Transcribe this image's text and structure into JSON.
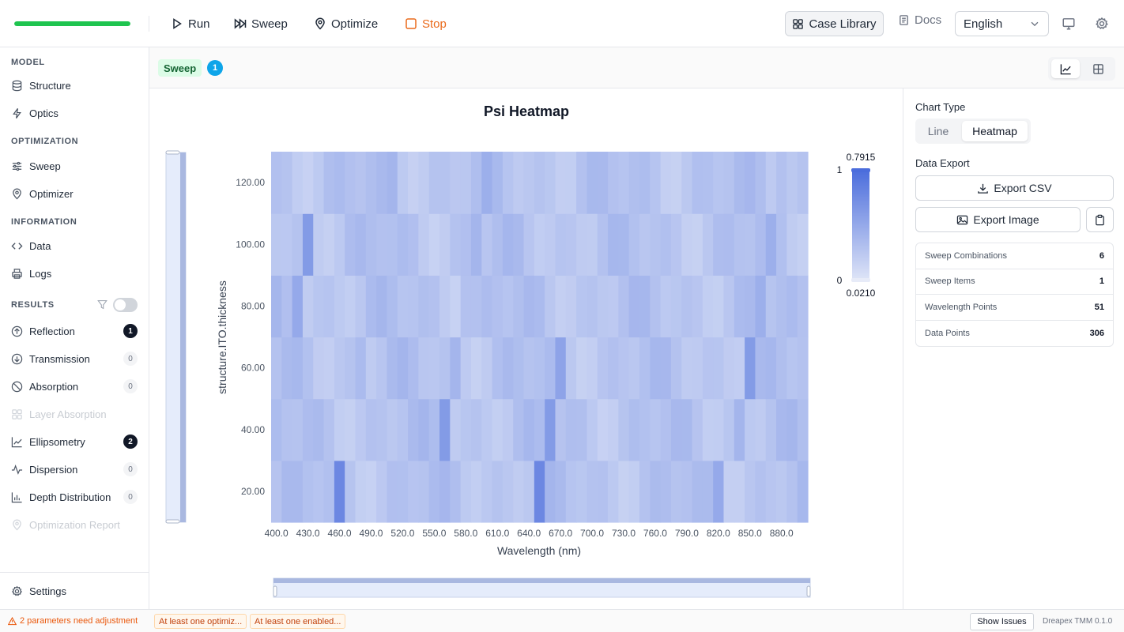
{
  "progress": 1.0,
  "toolbar": {
    "run_label": "Run",
    "sweep_label": "Sweep",
    "optimize_label": "Optimize",
    "stop_label": "Stop",
    "case_library_label": "Case Library",
    "docs_label": "Docs",
    "language": "English"
  },
  "sidebar": {
    "model_title": "MODEL",
    "structure": "Structure",
    "optics": "Optics",
    "optimization_title": "OPTIMIZATION",
    "sweep": "Sweep",
    "optimizer": "Optimizer",
    "information_title": "INFORMATION",
    "data": "Data",
    "logs": "Logs",
    "results_title": "RESULTS",
    "results": [
      {
        "label": "Reflection",
        "count": "1",
        "active": true
      },
      {
        "label": "Transmission",
        "count": "0",
        "active": false
      },
      {
        "label": "Absorption",
        "count": "0",
        "active": false
      },
      {
        "label": "Layer Absorption",
        "count": "",
        "active": false
      },
      {
        "label": "Ellipsometry",
        "count": "2",
        "active": true
      },
      {
        "label": "Dispersion",
        "count": "0",
        "active": false
      },
      {
        "label": "Depth Distribution",
        "count": "0",
        "active": false
      },
      {
        "label": "Optimization Report",
        "count": "",
        "active": false
      }
    ],
    "settings": "Settings"
  },
  "tabs": {
    "sweep_tag": "Sweep",
    "sweep_count": "1"
  },
  "right_panel": {
    "chart_type_label": "Chart Type",
    "line_label": "Line",
    "heatmap_label": "Heatmap",
    "data_export_label": "Data Export",
    "export_csv": "Export CSV",
    "export_image": "Export Image",
    "stats": [
      {
        "label": "Sweep Combinations",
        "value": "6"
      },
      {
        "label": "Sweep Items",
        "value": "1"
      },
      {
        "label": "Wavelength Points",
        "value": "51"
      },
      {
        "label": "Data Points",
        "value": "306"
      }
    ]
  },
  "status_bar": {
    "warning": "2 parameters need adjustment",
    "chip1": "At least one optimiz...",
    "chip2": "At least one enabled...",
    "show_issues": "Show Issues",
    "version": "Dreapex TMM 0.1.0"
  },
  "chart_data": {
    "type": "heatmap",
    "title": "Psi Heatmap",
    "xlabel": "Wavelength (nm)",
    "ylabel": "structure.ITO.thickness",
    "x_ticks": [
      "400.0",
      "430.0",
      "460.0",
      "490.0",
      "520.0",
      "550.0",
      "580.0",
      "610.0",
      "640.0",
      "670.0",
      "700.0",
      "730.0",
      "760.0",
      "790.0",
      "820.0",
      "850.0",
      "880.0"
    ],
    "y_ticks": [
      "20.00",
      "40.00",
      "60.00",
      "80.00",
      "100.00",
      "120.00"
    ],
    "x_range": [
      400,
      900
    ],
    "x_step": 10,
    "y_rows": [
      20,
      40,
      60,
      80,
      100,
      120
    ],
    "colorbar": {
      "max": 0.7915,
      "min": 0.021,
      "max_label": "0.7915",
      "min_label": "0.0210",
      "top_index": "1",
      "bottom_index": "0"
    },
    "colors": {
      "low": "#dfe5f7",
      "high": "#4b6ddc"
    },
    "peaks": [
      {
        "y": 20,
        "cols": [
          [
            6,
            0.78
          ],
          [
            15,
            0.35
          ],
          [
            25,
            0.78
          ],
          [
            42,
            0.5
          ]
        ]
      },
      {
        "y": 40,
        "cols": [
          [
            16,
            0.62
          ],
          [
            26,
            0.62
          ],
          [
            44,
            0.4
          ]
        ]
      },
      {
        "y": 60,
        "cols": [
          [
            8,
            0.35
          ],
          [
            17,
            0.4
          ],
          [
            27,
            0.55
          ],
          [
            45,
            0.62
          ]
        ]
      },
      {
        "y": 80,
        "cols": [
          [
            2,
            0.5
          ],
          [
            9,
            0.35
          ],
          [
            18,
            0.3
          ],
          [
            46,
            0.45
          ]
        ]
      },
      {
        "y": 100,
        "cols": [
          [
            3,
            0.62
          ],
          [
            10,
            0.3
          ],
          [
            19,
            0.4
          ],
          [
            47,
            0.45
          ]
        ]
      },
      {
        "y": 120,
        "cols": [
          [
            11,
            0.4
          ],
          [
            20,
            0.45
          ],
          [
            29,
            0.3
          ],
          [
            48,
            0.3
          ]
        ]
      }
    ],
    "background_level": 0.22
  }
}
